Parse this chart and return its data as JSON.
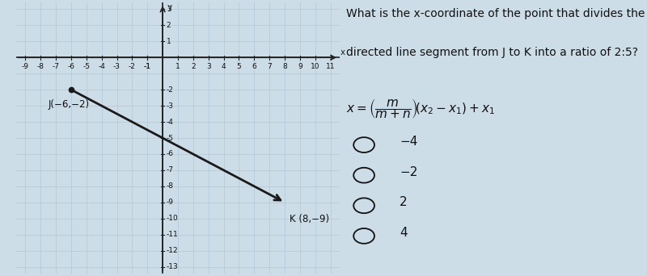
{
  "fig_bg_color": "#cddde8",
  "graph_bg_color": "#cddde8",
  "point_J": [
    -6,
    -2
  ],
  "point_K": [
    8,
    -9
  ],
  "label_J": "J(−6,−2)",
  "label_K": "K (8,−9)",
  "x_min": -9,
  "x_max": 11,
  "y_min": -13,
  "y_max": 3,
  "x_ticks_left": [
    -9,
    -8,
    -7,
    -6,
    -5,
    -4,
    -3,
    -2,
    -1
  ],
  "x_ticks_right": [
    1,
    2,
    3,
    4,
    5,
    6,
    7,
    8,
    9,
    10,
    11
  ],
  "y_ticks_pos": [
    1,
    2,
    3
  ],
  "y_ticks_neg": [
    -2,
    -3,
    -4,
    -5,
    -6,
    -7,
    -8,
    -9,
    -10,
    -11,
    -12,
    -13
  ],
  "question_line1": "What is the x-coordinate of the point that divides the",
  "question_line2": "directed line segment from J to K into a ratio of 2:5?",
  "choices": [
    "−4",
    "−2",
    "2",
    "4"
  ],
  "line_color": "#1a1a1a",
  "grid_color": "#b0c8d8",
  "axis_color": "#222222",
  "text_color": "#111111",
  "font_size_label": 8.5,
  "font_size_tick": 6.5,
  "font_size_question": 10,
  "font_size_choices": 11,
  "font_size_formula": 11
}
